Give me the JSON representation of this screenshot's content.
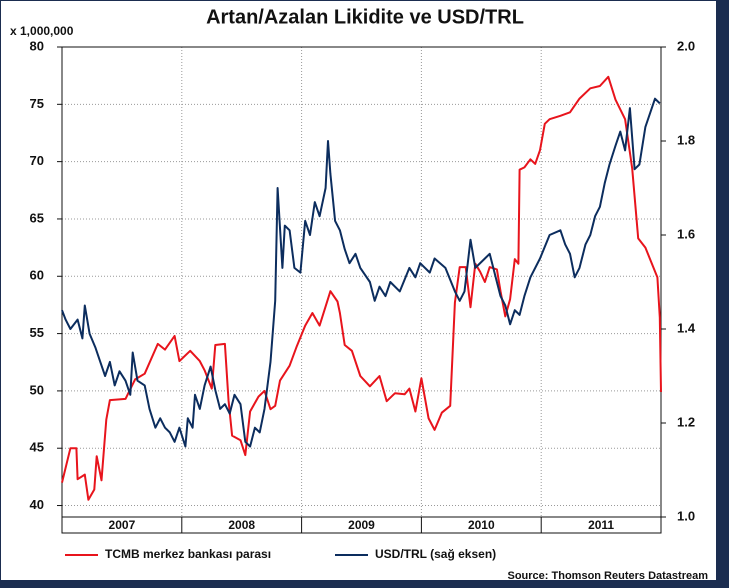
{
  "chart_data": {
    "type": "line",
    "title": "Artan/Azalan Likidite ve USD/TRL",
    "y_label": "x 1,000,000",
    "source": "Source: Thomson Reuters Datastream",
    "xlim": [
      2007,
      2012
    ],
    "xgrid": [
      2008,
      2009,
      2010,
      2011
    ],
    "xticks": [
      {
        "value": 2007.5,
        "label": "2007"
      },
      {
        "value": 2008.5,
        "label": "2008"
      },
      {
        "value": 2009.5,
        "label": "2009"
      },
      {
        "value": 2010.5,
        "label": "2010"
      },
      {
        "value": 2011.5,
        "label": "2011"
      }
    ],
    "ylim": [
      39,
      80
    ],
    "yticks": [
      40,
      45,
      50,
      55,
      60,
      65,
      70,
      75,
      80
    ],
    "y2lim": [
      1,
      2
    ],
    "y2ticks": [
      {
        "value": 1,
        "label": "1.0"
      },
      1.2,
      1.4,
      1.6,
      1.8,
      {
        "value": 2,
        "label": "2.0"
      }
    ],
    "grid": true,
    "series": [
      {
        "name": "TCMB merkez bankası parası",
        "color": "#e8141c",
        "axis": "y",
        "x": [
          2007.0,
          2007.07,
          2007.12,
          2007.13,
          2007.19,
          2007.22,
          2007.27,
          2007.29,
          2007.33,
          2007.37,
          2007.4,
          2007.53,
          2007.61,
          2007.69,
          2007.8,
          2007.86,
          2007.94,
          2007.98,
          2008.07,
          2008.15,
          2008.19,
          2008.25,
          2008.28,
          2008.36,
          2008.39,
          2008.42,
          2008.49,
          2008.53,
          2008.57,
          2008.64,
          2008.69,
          2008.74,
          2008.78,
          2008.82,
          2008.9,
          2008.96,
          2009.03,
          2009.09,
          2009.15,
          2009.24,
          2009.3,
          2009.32,
          2009.36,
          2009.42,
          2009.49,
          2009.57,
          2009.65,
          2009.71,
          2009.78,
          2009.86,
          2009.9,
          2009.95,
          2010.0,
          2010.06,
          2010.11,
          2010.17,
          2010.24,
          2010.28,
          2010.32,
          2010.37,
          2010.41,
          2010.45,
          2010.49,
          2010.53,
          2010.57,
          2010.63,
          2010.66,
          2010.7,
          2010.74,
          2010.78,
          2010.81,
          2010.82,
          2010.86,
          2010.91,
          2010.95,
          2010.99,
          2011.03,
          2011.07,
          2011.16,
          2011.24,
          2011.32,
          2011.41,
          2011.49,
          2011.56,
          2011.62,
          2011.7,
          2011.76,
          2011.81,
          2011.87,
          2011.92,
          2011.97,
          2011.99,
          2012.0
        ],
        "values": [
          42.0,
          45.0,
          45.0,
          42.3,
          42.7,
          40.5,
          41.4,
          44.3,
          42.2,
          47.5,
          49.2,
          49.3,
          51.0,
          51.5,
          54.1,
          53.6,
          54.8,
          52.6,
          53.5,
          52.6,
          51.8,
          50.2,
          54.0,
          54.1,
          49.2,
          46.1,
          45.7,
          44.4,
          48.2,
          49.5,
          50.0,
          48.4,
          48.7,
          50.9,
          52.2,
          53.9,
          55.7,
          56.8,
          55.7,
          58.7,
          57.8,
          56.8,
          54.0,
          53.5,
          51.3,
          50.4,
          51.3,
          49.1,
          49.8,
          49.7,
          50.2,
          48.2,
          51.1,
          47.6,
          46.6,
          48.1,
          48.7,
          57.7,
          60.8,
          60.8,
          57.3,
          61.1,
          60.4,
          59.5,
          60.8,
          60.6,
          58.7,
          56.5,
          58.0,
          61.5,
          61.1,
          69.3,
          69.5,
          70.2,
          69.8,
          71.0,
          73.3,
          73.7,
          74.0,
          74.3,
          75.5,
          76.4,
          76.6,
          77.4,
          75.4,
          73.7,
          69.4,
          63.3,
          62.5,
          61.2,
          59.9,
          56.4,
          49.9
        ]
      },
      {
        "name": "USD/TRL (sağ eksen)",
        "color": "#0c2d5e",
        "axis": "y2",
        "x": [
          2007.0,
          2007.03,
          2007.07,
          2007.13,
          2007.17,
          2007.19,
          2007.23,
          2007.28,
          2007.32,
          2007.36,
          2007.4,
          2007.44,
          2007.48,
          2007.53,
          2007.57,
          2007.59,
          2007.63,
          2007.69,
          2007.73,
          2007.78,
          2007.82,
          2007.86,
          2007.9,
          2007.94,
          2007.98,
          2008.03,
          2008.05,
          2008.09,
          2008.11,
          2008.15,
          2008.19,
          2008.24,
          2008.28,
          2008.32,
          2008.36,
          2008.4,
          2008.44,
          2008.49,
          2008.53,
          2008.57,
          2008.61,
          2008.65,
          2008.69,
          2008.74,
          2008.78,
          2008.8,
          2008.84,
          2008.86,
          2008.9,
          2008.94,
          2008.99,
          2009.03,
          2009.07,
          2009.11,
          2009.15,
          2009.2,
          2009.22,
          2009.24,
          2009.28,
          2009.32,
          2009.36,
          2009.4,
          2009.45,
          2009.49,
          2009.57,
          2009.61,
          2009.65,
          2009.7,
          2009.74,
          2009.82,
          2009.9,
          2009.95,
          2009.99,
          2010.07,
          2010.11,
          2010.2,
          2010.28,
          2010.32,
          2010.36,
          2010.41,
          2010.45,
          2010.53,
          2010.57,
          2010.61,
          2010.66,
          2010.7,
          2010.74,
          2010.78,
          2010.82,
          2010.86,
          2010.91,
          2010.99,
          2011.07,
          2011.16,
          2011.2,
          2011.24,
          2011.28,
          2011.32,
          2011.37,
          2011.41,
          2011.45,
          2011.49,
          2011.53,
          2011.57,
          2011.62,
          2011.66,
          2011.7,
          2011.74,
          2011.78,
          2011.82,
          2011.87,
          2011.91,
          2011.95,
          2011.99
        ],
        "values": [
          1.44,
          1.42,
          1.4,
          1.42,
          1.38,
          1.45,
          1.39,
          1.36,
          1.33,
          1.3,
          1.33,
          1.28,
          1.31,
          1.29,
          1.26,
          1.35,
          1.29,
          1.28,
          1.23,
          1.19,
          1.21,
          1.19,
          1.18,
          1.16,
          1.19,
          1.15,
          1.21,
          1.19,
          1.26,
          1.23,
          1.28,
          1.32,
          1.27,
          1.23,
          1.24,
          1.22,
          1.26,
          1.24,
          1.16,
          1.15,
          1.19,
          1.18,
          1.23,
          1.33,
          1.46,
          1.7,
          1.53,
          1.62,
          1.61,
          1.53,
          1.52,
          1.63,
          1.6,
          1.67,
          1.64,
          1.7,
          1.8,
          1.73,
          1.63,
          1.61,
          1.57,
          1.54,
          1.56,
          1.53,
          1.5,
          1.46,
          1.49,
          1.47,
          1.5,
          1.48,
          1.53,
          1.51,
          1.54,
          1.52,
          1.55,
          1.53,
          1.48,
          1.46,
          1.48,
          1.59,
          1.53,
          1.55,
          1.56,
          1.52,
          1.47,
          1.45,
          1.41,
          1.44,
          1.43,
          1.47,
          1.51,
          1.55,
          1.6,
          1.61,
          1.58,
          1.56,
          1.51,
          1.53,
          1.58,
          1.6,
          1.64,
          1.66,
          1.71,
          1.75,
          1.79,
          1.82,
          1.78,
          1.87,
          1.74,
          1.75,
          1.83,
          1.86,
          1.89,
          1.88
        ]
      }
    ]
  }
}
